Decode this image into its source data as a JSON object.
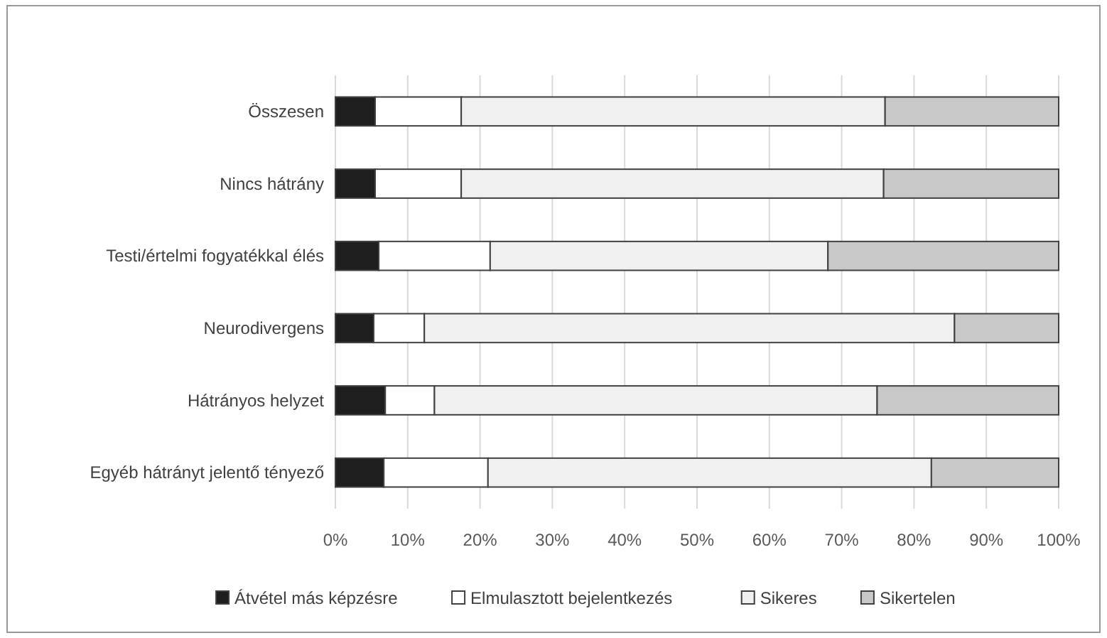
{
  "chart_data": {
    "type": "bar",
    "orientation": "horizontal",
    "stacked": true,
    "categories": [
      "Összesen",
      "Nincs hátrány",
      "Testi/értelmi fogyatékkal élés",
      "Neurodivergens",
      "Hátrányos helyzet",
      "Egyéb hátrányt jelentő tényező"
    ],
    "series": [
      {
        "name": "Átvétel más képzésre",
        "color": "#1e1e1e",
        "values": [
          5.5,
          5.5,
          6.0,
          5.3,
          6.9,
          6.7
        ]
      },
      {
        "name": "Elmulasztott bejelentkezés",
        "color": "#ffffff",
        "values": [
          11.9,
          11.9,
          15.4,
          7.0,
          6.8,
          14.4
        ]
      },
      {
        "name": "Sikeres",
        "color": "#f0f0f0",
        "values": [
          58.6,
          58.4,
          46.7,
          73.3,
          61.2,
          61.3
        ]
      },
      {
        "name": "Sikertelen",
        "color": "#c8c8c8",
        "values": [
          24.0,
          24.2,
          31.9,
          14.4,
          25.1,
          17.6
        ]
      }
    ],
    "xlim": [
      0,
      100
    ],
    "xticks": [
      {
        "value": 0,
        "label": "0%"
      },
      {
        "value": 10,
        "label": "10%"
      },
      {
        "value": 20,
        "label": "20%"
      },
      {
        "value": 30,
        "label": "30%"
      },
      {
        "value": 40,
        "label": "40%"
      },
      {
        "value": 50,
        "label": "50%"
      },
      {
        "value": 60,
        "label": "60%"
      },
      {
        "value": 70,
        "label": "70%"
      },
      {
        "value": 80,
        "label": "80%"
      },
      {
        "value": 90,
        "label": "90%"
      },
      {
        "value": 100,
        "label": "100%"
      }
    ],
    "grid": "x",
    "legend": "bottom"
  }
}
